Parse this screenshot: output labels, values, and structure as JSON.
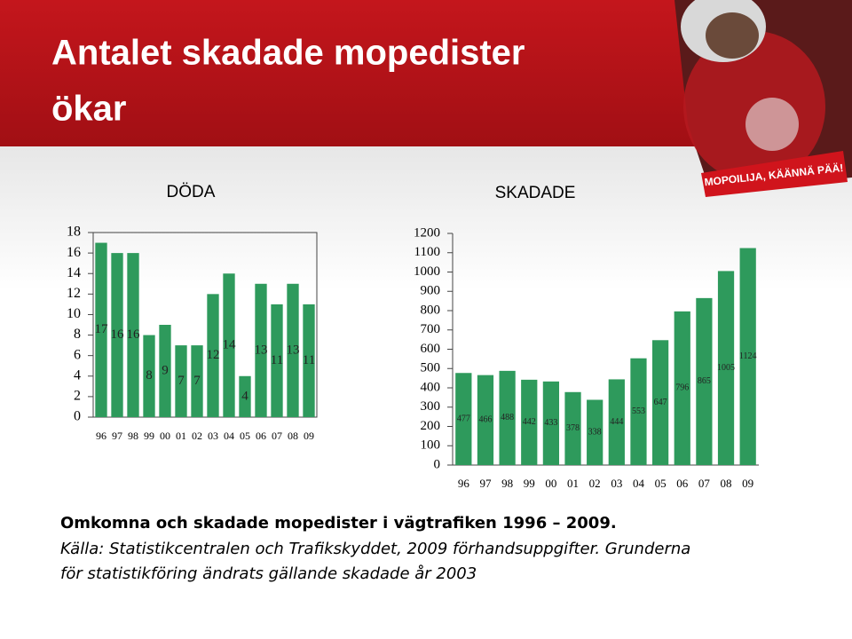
{
  "header": {
    "title_lines": [
      "Antalet skadade mopedister",
      "ökar"
    ],
    "badge": "MOPOILIJA, KÄÄNNÄ PÄÄ!"
  },
  "chart_data": [
    {
      "type": "bar",
      "title": "DÖDA",
      "categories": [
        "96",
        "97",
        "98",
        "99",
        "00",
        "01",
        "02",
        "03",
        "04",
        "05",
        "06",
        "07",
        "08",
        "09"
      ],
      "values": [
        17,
        16,
        16,
        8,
        9,
        7,
        7,
        12,
        14,
        4,
        13,
        11,
        13,
        11
      ],
      "color": "#2e9a5c",
      "ylim": [
        0,
        18
      ],
      "yticks": [
        0,
        2,
        4,
        6,
        8,
        10,
        12,
        14,
        16,
        18
      ]
    },
    {
      "type": "bar",
      "title": "SKADADE",
      "categories": [
        "96",
        "97",
        "98",
        "99",
        "00",
        "01",
        "02",
        "03",
        "04",
        "05",
        "06",
        "07",
        "08",
        "09"
      ],
      "values": [
        477,
        466,
        488,
        442,
        433,
        378,
        338,
        444,
        553,
        647,
        796,
        865,
        1005,
        1124
      ],
      "color": "#2e9a5c",
      "ylim": [
        0,
        1200
      ],
      "yticks": [
        0,
        100,
        200,
        300,
        400,
        500,
        600,
        700,
        800,
        900,
        1000,
        1100,
        1200
      ]
    }
  ],
  "caption": {
    "line1": "Omkomna och skadade mopedister i vägtrafiken 1996 – 2009.",
    "line2": "Källa: Statistikcentralen och Trafikskyddet, 2009 förhandsuppgifter. Grunderna",
    "line3": "för statistikföring ändrats gällande skadade år 2003"
  }
}
